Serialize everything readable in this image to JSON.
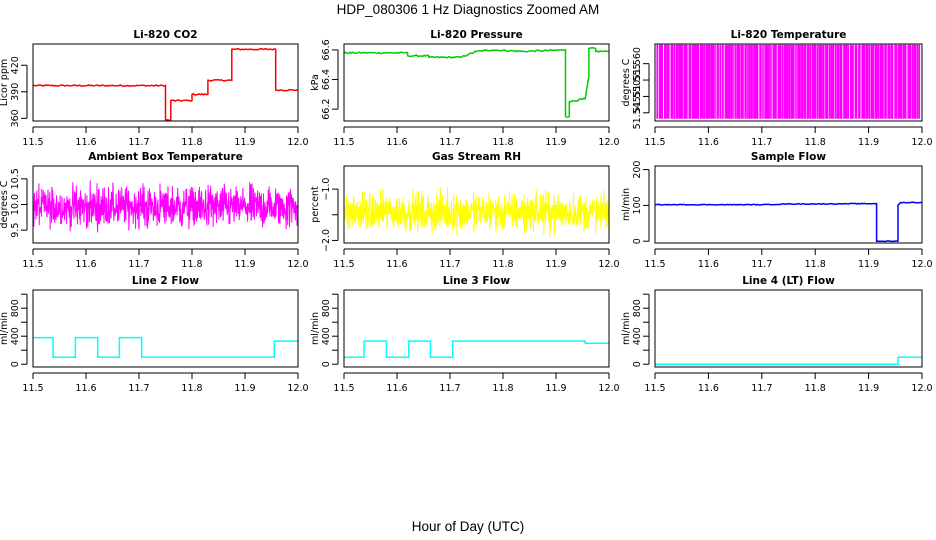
{
  "page_title": "HDP_080306  1 Hz Diagnostics Zoomed AM",
  "x_axis_label": "Hour of Day (UTC)",
  "chart_data": [
    {
      "type": "line",
      "title": "Li-820 CO2",
      "ylabel": "Licor ppm",
      "color": "#ff0000",
      "xlim": [
        11.5,
        12.0
      ],
      "ylim": [
        357,
        444
      ],
      "xticks": [
        11.5,
        11.6,
        11.7,
        11.8,
        11.9,
        12.0
      ],
      "xtick_labels": [
        "11.5",
        "11.6",
        "11.7",
        "11.8",
        "11.9",
        "12.0"
      ],
      "yticks": [
        360,
        390,
        420
      ],
      "ytick_labels": [
        "360",
        "390",
        "420"
      ],
      "x": [
        11.5,
        11.75,
        11.75,
        11.76,
        11.76,
        11.8,
        11.8,
        11.83,
        11.83,
        11.875,
        11.875,
        11.958,
        11.958,
        12.0
      ],
      "y": [
        397,
        397,
        358,
        358,
        380,
        380,
        387,
        387,
        403,
        403,
        438,
        438,
        392,
        392
      ],
      "noise": 0.8
    },
    {
      "type": "line",
      "title": "Li-820 Pressure",
      "ylabel": "kPa",
      "color": "#00cc00",
      "xlim": [
        11.5,
        12.0
      ],
      "ylim": [
        66.12,
        66.64
      ],
      "xticks": [
        11.5,
        11.6,
        11.7,
        11.8,
        11.9,
        12.0
      ],
      "xtick_labels": [
        "11.5",
        "11.6",
        "11.7",
        "11.8",
        "11.9",
        "12.0"
      ],
      "yticks": [
        66.2,
        66.4,
        66.6
      ],
      "ytick_labels": [
        "66.2",
        "66.4",
        "66.6"
      ],
      "x": [
        11.5,
        11.62,
        11.62,
        11.66,
        11.66,
        11.72,
        11.75,
        11.78,
        11.84,
        11.915,
        11.918,
        11.918,
        11.925,
        11.925,
        11.955,
        11.962,
        11.962,
        11.975,
        11.975,
        12.0
      ],
      "y": [
        66.58,
        66.58,
        66.56,
        66.56,
        66.55,
        66.55,
        66.59,
        66.6,
        66.59,
        66.6,
        66.6,
        66.15,
        66.15,
        66.25,
        66.27,
        66.42,
        66.61,
        66.61,
        66.59,
        66.59
      ],
      "noise": 0.005
    },
    {
      "type": "line",
      "title": "Li-820 Temperature",
      "ylabel": "degrees C",
      "color": "#ff00ff",
      "xlim": [
        11.5,
        12.0
      ],
      "ylim": [
        51.5425,
        51.566
      ],
      "xticks": [
        11.5,
        11.6,
        11.7,
        11.8,
        11.9,
        12.0
      ],
      "xtick_labels": [
        "11.5",
        "11.6",
        "11.7",
        "11.8",
        "11.9",
        "12.0"
      ],
      "yticks": [
        51.545,
        51.55,
        51.555,
        51.56
      ],
      "ytick_labels": [
        "51.545",
        "51.550",
        "51.555",
        "51.560"
      ],
      "levels": [
        51.5432,
        51.5658
      ]
    },
    {
      "type": "line",
      "title": "Ambient Box Temperature",
      "ylabel": "degrees C",
      "color": "#ff00ff",
      "xlim": [
        11.5,
        12.0
      ],
      "ylim": [
        9.25,
        10.75
      ],
      "xticks": [
        11.5,
        11.6,
        11.7,
        11.8,
        11.9,
        12.0
      ],
      "xtick_labels": [
        "11.5",
        "11.6",
        "11.7",
        "11.8",
        "11.9",
        "12.0"
      ],
      "yticks": [
        9.5,
        10.0,
        10.5
      ],
      "ytick_labels": [
        "9.5",
        "10.0",
        "10.5"
      ],
      "center": 9.95,
      "spread": 0.6
    },
    {
      "type": "line",
      "title": "Gas Stream RH",
      "ylabel": "percent",
      "color": "#ffff00",
      "xlim": [
        11.5,
        12.0
      ],
      "ylim": [
        -2.05,
        -0.55
      ],
      "xticks": [
        11.5,
        11.6,
        11.7,
        11.8,
        11.9,
        12.0
      ],
      "xtick_labels": [
        "11.5",
        "11.6",
        "11.7",
        "11.8",
        "11.9",
        "12.0"
      ],
      "yticks": [
        -2.0,
        -1.5,
        -1.0
      ],
      "ytick_labels": [
        "−2.0",
        "",
        "−1.0"
      ],
      "center": -1.45,
      "spread": 0.55
    },
    {
      "type": "line",
      "title": "Sample Flow",
      "ylabel": "ml/min",
      "color": "#0000ff",
      "xlim": [
        11.5,
        12.0
      ],
      "ylim": [
        -5,
        210
      ],
      "xticks": [
        11.5,
        11.6,
        11.7,
        11.8,
        11.9,
        12.0
      ],
      "xtick_labels": [
        "11.5",
        "11.6",
        "11.7",
        "11.8",
        "11.9",
        "12.0"
      ],
      "yticks": [
        0,
        100,
        200
      ],
      "ytick_labels": [
        "0",
        "100",
        "200"
      ],
      "x": [
        11.5,
        11.7,
        11.75,
        11.8,
        11.915,
        11.915,
        11.955,
        11.955,
        11.96,
        12.0
      ],
      "y": [
        102,
        102,
        104,
        104,
        105,
        0,
        0,
        100,
        108,
        108
      ],
      "noise": 1.0
    },
    {
      "type": "line",
      "title": "Line 2 Flow",
      "ylabel": "ml/min",
      "color": "#00ffff",
      "xlim": [
        11.5,
        12.0
      ],
      "ylim": [
        -40,
        1060
      ],
      "xticks": [
        11.5,
        11.6,
        11.7,
        11.8,
        11.9,
        12.0
      ],
      "xtick_labels": [
        "11.5",
        "11.6",
        "11.7",
        "11.8",
        "11.9",
        "12.0"
      ],
      "yticks": [
        0,
        200,
        400,
        600,
        800,
        1000
      ],
      "ytick_labels": [
        "0",
        "",
        "400",
        "",
        "800",
        ""
      ],
      "x": [
        11.5,
        11.538,
        11.538,
        11.58,
        11.58,
        11.622,
        11.622,
        11.663,
        11.663,
        11.705,
        11.705,
        11.955,
        11.955,
        12.0
      ],
      "y": [
        380,
        380,
        100,
        100,
        380,
        380,
        100,
        100,
        380,
        380,
        100,
        100,
        330,
        330
      ],
      "noise": 0
    },
    {
      "type": "line",
      "title": "Line 3 Flow",
      "ylabel": "ml/min",
      "color": "#00ffff",
      "xlim": [
        11.5,
        12.0
      ],
      "ylim": [
        -40,
        1060
      ],
      "xticks": [
        11.5,
        11.6,
        11.7,
        11.8,
        11.9,
        12.0
      ],
      "xtick_labels": [
        "11.5",
        "11.6",
        "11.7",
        "11.8",
        "11.9",
        "12.0"
      ],
      "yticks": [
        0,
        200,
        400,
        600,
        800,
        1000
      ],
      "ytick_labels": [
        "0",
        "",
        "400",
        "",
        "800",
        ""
      ],
      "x": [
        11.5,
        11.538,
        11.538,
        11.58,
        11.58,
        11.622,
        11.622,
        11.663,
        11.663,
        11.705,
        11.705,
        11.955,
        11.955,
        12.0
      ],
      "y": [
        100,
        100,
        330,
        330,
        100,
        100,
        330,
        330,
        100,
        100,
        330,
        330,
        300,
        300
      ],
      "noise": 0
    },
    {
      "type": "line",
      "title": "Line 4 (LT) Flow",
      "ylabel": "ml/min",
      "color": "#00ffff",
      "xlim": [
        11.5,
        12.0
      ],
      "ylim": [
        -40,
        1060
      ],
      "xticks": [
        11.5,
        11.6,
        11.7,
        11.8,
        11.9,
        12.0
      ],
      "xtick_labels": [
        "11.5",
        "11.6",
        "11.7",
        "11.8",
        "11.9",
        "12.0"
      ],
      "yticks": [
        0,
        200,
        400,
        600,
        800,
        1000
      ],
      "ytick_labels": [
        "0",
        "",
        "400",
        "",
        "800",
        ""
      ],
      "x": [
        11.5,
        11.955,
        11.955,
        12.0
      ],
      "y": [
        0,
        0,
        100,
        100
      ],
      "noise": 0
    }
  ]
}
